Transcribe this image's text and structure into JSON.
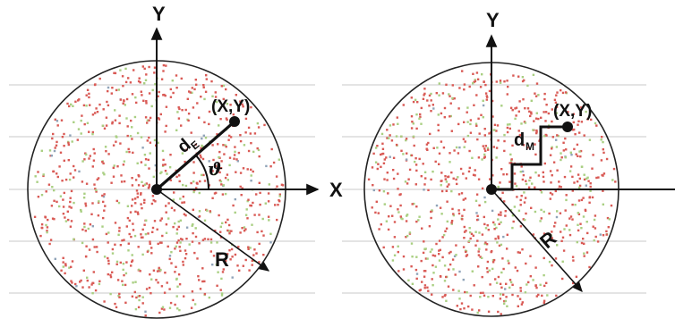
{
  "colors": {
    "circle": "#222222",
    "axes": "#111111",
    "grid": "#c8c8c8",
    "dot_red": "#d95a55",
    "dot_green": "#a9cf82",
    "dot_blue": "#8fa3b8"
  },
  "left": {
    "y_label": "Y",
    "x_label": "X",
    "point_label": "(X,Y)",
    "distance_main": "d",
    "distance_sub": "E",
    "angle_label": "ϑ",
    "radius_label": "R"
  },
  "right": {
    "y_label": "Y",
    "point_label": "(X,Y)",
    "distance_main": "d",
    "distance_sub": "M",
    "radius_label": "R"
  }
}
